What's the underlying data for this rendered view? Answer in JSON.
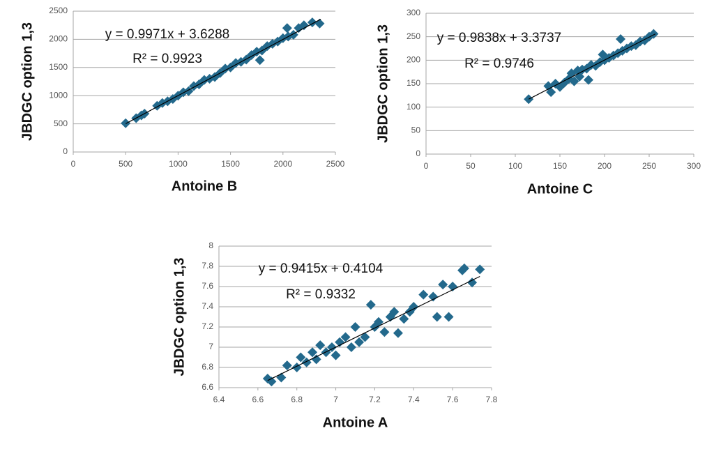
{
  "chart_data": [
    {
      "type": "scatter",
      "xlabel": "Antoine B",
      "ylabel": "JBDGC option 1,3",
      "equation": "y = 0.9971x + 3.6288",
      "r_squared": "R² = 0.9923",
      "xlim": [
        0,
        2500
      ],
      "ylim": [
        0,
        2500
      ],
      "xticks": [
        0,
        500,
        1000,
        1500,
        2000,
        2500
      ],
      "yticks": [
        0,
        500,
        1000,
        1500,
        2000,
        2500
      ],
      "grid": true,
      "color": "#23698c",
      "x": [
        500,
        600,
        650,
        680,
        800,
        850,
        900,
        950,
        1000,
        1050,
        1100,
        1150,
        1200,
        1250,
        1300,
        1350,
        1400,
        1450,
        1500,
        1550,
        1600,
        1650,
        1700,
        1750,
        1780,
        1800,
        1850,
        1900,
        1950,
        2000,
        2040,
        2050,
        2100,
        2150,
        2200,
        2280,
        2350
      ],
      "values": [
        510,
        600,
        650,
        680,
        820,
        870,
        900,
        940,
        1000,
        1060,
        1080,
        1170,
        1200,
        1280,
        1300,
        1330,
        1400,
        1480,
        1500,
        1580,
        1600,
        1640,
        1720,
        1780,
        1630,
        1800,
        1880,
        1920,
        1960,
        2020,
        2200,
        2050,
        2080,
        2200,
        2250,
        2300,
        2280
      ],
      "trendline": {
        "x": [
          500,
          2360
        ],
        "y": [
          502,
          2357
        ]
      }
    },
    {
      "type": "scatter",
      "xlabel": "Antoine C",
      "ylabel": "JBDGC option 1,3",
      "equation": "y = 0.9838x + 3.3737",
      "r_squared": "R² = 0.9746",
      "xlim": [
        0,
        300
      ],
      "ylim": [
        0,
        300
      ],
      "xticks": [
        0,
        50,
        100,
        150,
        200,
        250,
        300
      ],
      "yticks": [
        0,
        50,
        100,
        150,
        200,
        250,
        300
      ],
      "grid": true,
      "color": "#23698c",
      "x": [
        115,
        137,
        140,
        145,
        150,
        155,
        160,
        163,
        166,
        170,
        172,
        175,
        180,
        182,
        185,
        190,
        195,
        198,
        200,
        205,
        210,
        215,
        218,
        220,
        225,
        230,
        235,
        240,
        245,
        250,
        255
      ],
      "values": [
        117,
        145,
        132,
        150,
        143,
        152,
        160,
        172,
        155,
        178,
        165,
        180,
        182,
        158,
        190,
        188,
        196,
        212,
        200,
        205,
        210,
        215,
        245,
        220,
        225,
        230,
        232,
        240,
        242,
        250,
        256
      ],
      "trendline": {
        "x": [
          115,
          257
        ],
        "y": [
          117,
          256
        ]
      }
    },
    {
      "type": "scatter",
      "xlabel": "Antoine A",
      "ylabel": "JBDGC option 1,3",
      "equation": "y = 0.9415x + 0.4104",
      "r_squared": "R² = 0.9332",
      "xlim": [
        6.4,
        7.8
      ],
      "ylim": [
        6.6,
        8
      ],
      "xticks": [
        6.4,
        6.6,
        6.8,
        7,
        7.2,
        7.4,
        7.6,
        7.8
      ],
      "yticks": [
        6.6,
        6.8,
        7,
        7.2,
        7.4,
        7.6,
        7.8,
        8
      ],
      "grid": true,
      "color": "#23698c",
      "x": [
        6.65,
        6.67,
        6.72,
        6.75,
        6.8,
        6.82,
        6.85,
        6.88,
        6.9,
        6.92,
        6.95,
        6.98,
        7.0,
        7.02,
        7.05,
        7.08,
        7.1,
        7.12,
        7.15,
        7.18,
        7.2,
        7.22,
        7.25,
        7.28,
        7.3,
        7.32,
        7.35,
        7.38,
        7.4,
        7.45,
        7.5,
        7.52,
        7.55,
        7.58,
        7.6,
        7.65,
        7.66,
        7.7,
        7.74
      ],
      "values": [
        6.69,
        6.66,
        6.7,
        6.82,
        6.8,
        6.9,
        6.85,
        6.95,
        6.88,
        7.02,
        6.95,
        7.0,
        6.92,
        7.05,
        7.1,
        7.0,
        7.2,
        7.05,
        7.1,
        7.42,
        7.2,
        7.25,
        7.15,
        7.3,
        7.35,
        7.14,
        7.28,
        7.35,
        7.4,
        7.52,
        7.5,
        7.3,
        7.62,
        7.3,
        7.6,
        7.76,
        7.78,
        7.64,
        7.77
      ],
      "trendline": {
        "x": [
          6.65,
          7.74
        ],
        "y": [
          6.67,
          7.7
        ]
      }
    }
  ]
}
